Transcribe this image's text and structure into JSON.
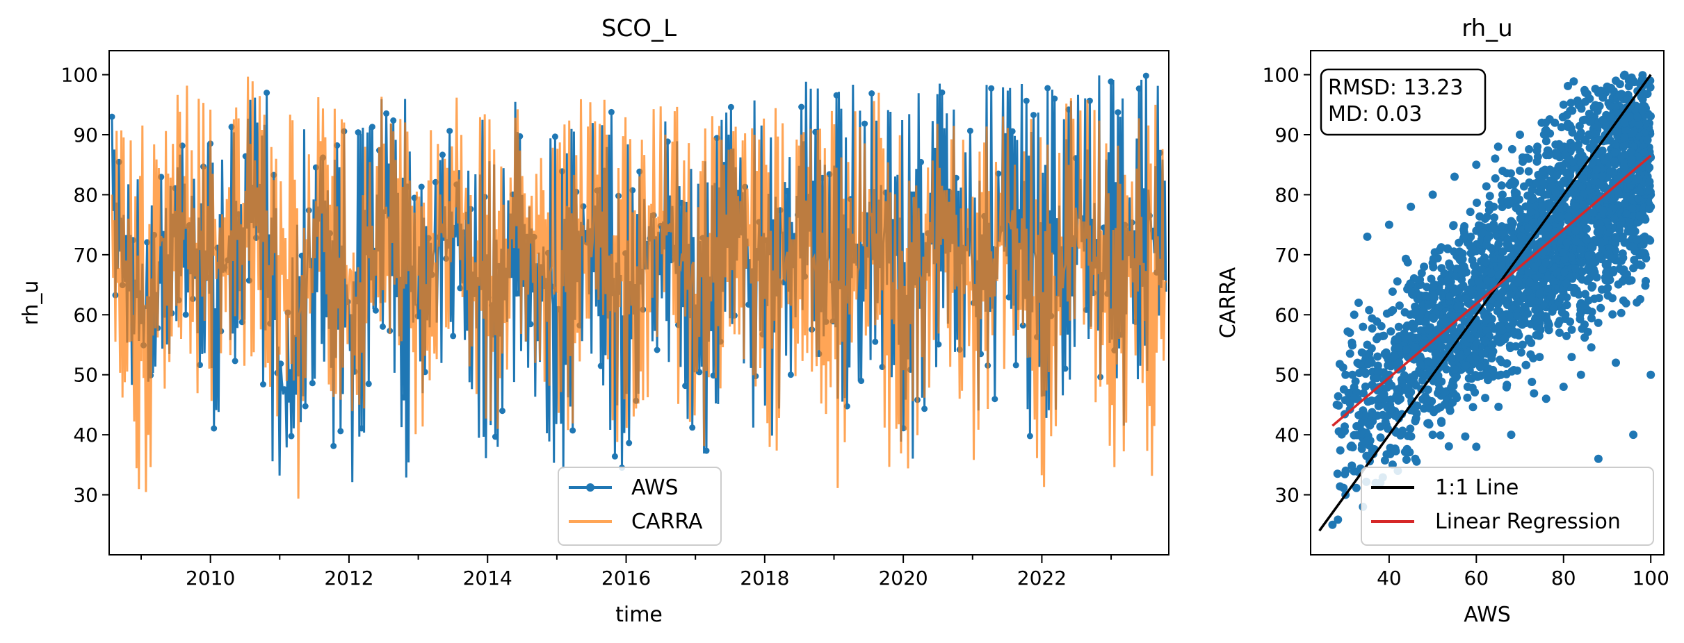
{
  "chart_data": [
    {
      "type": "line",
      "title": "SCO_L",
      "xlabel": "time",
      "ylabel": "rh_u",
      "xlim": [
        "2008-07-15",
        "2023-10-31"
      ],
      "ylim": [
        20,
        104
      ],
      "x_ticks": [
        "2010",
        "2012",
        "2014",
        "2016",
        "2018",
        "2020",
        "2022"
      ],
      "y_ticks": [
        30,
        40,
        50,
        60,
        70,
        80,
        90,
        100
      ],
      "grid": false,
      "legend": "lower center",
      "series": [
        {
          "name": "AWS",
          "color": "#1f77b4",
          "marker": "circle",
          "x": [
            "2008-08",
            "2008-11",
            "2009-02",
            "2009-05",
            "2009-08",
            "2009-11",
            "2010-02",
            "2010-05",
            "2010-08",
            "2010-11",
            "2011-02",
            "2011-05",
            "2011-08",
            "2011-11",
            "2012-02",
            "2012-05",
            "2012-08",
            "2012-11",
            "2013-02",
            "2013-05",
            "2013-08",
            "2013-11",
            "2014-02",
            "2014-05",
            "2014-08",
            "2014-11",
            "2015-02",
            "2015-05",
            "2015-08",
            "2015-11",
            "2016-02",
            "2016-05",
            "2016-08",
            "2016-11",
            "2017-02",
            "2017-05",
            "2017-08",
            "2017-11",
            "2018-02",
            "2018-05",
            "2018-08",
            "2018-11",
            "2019-02",
            "2019-05",
            "2019-08",
            "2019-11",
            "2020-02",
            "2020-05",
            "2020-08",
            "2020-11",
            "2021-02",
            "2021-05",
            "2021-08",
            "2021-11",
            "2022-02",
            "2022-05",
            "2022-08",
            "2022-11",
            "2023-02",
            "2023-05",
            "2023-08"
          ],
          "min": [
            62,
            48,
            41,
            50,
            58,
            45,
            38,
            52,
            55,
            36,
            30.5,
            30.5,
            52,
            33,
            31,
            48,
            55,
            32,
            34,
            50,
            56,
            36,
            35,
            45,
            50,
            34,
            33,
            44,
            52,
            35,
            33,
            47,
            54,
            36,
            29,
            44,
            56,
            40,
            38,
            48,
            56,
            38,
            36,
            46,
            54,
            38,
            33,
            45,
            56,
            40,
            38,
            46,
            54,
            38,
            36,
            46,
            54,
            38,
            36,
            48,
            50
          ],
          "max": [
            93,
            90,
            80,
            85,
            95,
            96,
            88,
            92,
            96,
            99,
            60,
            98,
            99,
            95,
            90,
            98,
            97,
            96,
            92,
            95,
            96,
            94,
            90,
            97,
            96,
            95,
            90,
            95,
            93,
            94,
            88,
            95,
            93,
            96,
            92,
            94,
            99,
            99,
            100,
            98,
            100,
            100,
            98,
            99,
            100,
            99,
            98,
            100,
            100,
            99,
            98,
            99,
            100,
            100,
            98,
            100,
            100,
            100,
            99,
            100,
            100
          ]
        },
        {
          "name": "CARRA",
          "color": "#ff7f0e",
          "alpha": 0.7,
          "x": [
            "2008-08",
            "2008-11",
            "2009-02",
            "2009-05",
            "2009-08",
            "2009-11",
            "2010-02",
            "2010-05",
            "2010-08",
            "2010-11",
            "2011-02",
            "2011-05",
            "2011-08",
            "2011-11",
            "2012-02",
            "2012-05",
            "2012-08",
            "2012-11",
            "2013-02",
            "2013-05",
            "2013-08",
            "2013-11",
            "2014-02",
            "2014-05",
            "2014-08",
            "2014-11",
            "2015-02",
            "2015-05",
            "2015-08",
            "2015-11",
            "2016-02",
            "2016-05",
            "2016-08",
            "2016-11",
            "2017-02",
            "2017-05",
            "2017-08",
            "2017-11",
            "2018-02",
            "2018-05",
            "2018-08",
            "2018-11",
            "2019-02",
            "2019-05",
            "2019-08",
            "2019-11",
            "2020-02",
            "2020-05",
            "2020-08",
            "2020-11",
            "2021-02",
            "2021-05",
            "2021-08",
            "2021-11",
            "2022-02",
            "2022-05",
            "2022-08",
            "2022-11",
            "2023-02",
            "2023-05",
            "2023-08"
          ],
          "min": [
            62,
            25,
            30,
            46,
            55,
            45,
            42,
            50,
            48,
            44,
            40,
            25,
            55,
            40,
            38,
            48,
            54,
            40,
            40,
            50,
            56,
            40,
            38,
            48,
            54,
            40,
            36,
            46,
            54,
            40,
            32,
            44,
            55,
            40,
            36,
            46,
            55,
            44,
            30,
            40,
            52,
            36,
            30,
            42,
            54,
            30,
            28,
            40,
            52,
            38,
            30,
            44,
            54,
            36,
            30,
            44,
            52,
            38,
            30,
            42,
            33
          ],
          "max": [
            92,
            90,
            96,
            98,
            100,
            100,
            95,
            98,
            100,
            95,
            92,
            97,
            99,
            95,
            92,
            96,
            98,
            95,
            92,
            96,
            98,
            96,
            92,
            96,
            98,
            96,
            92,
            96,
            97,
            96,
            92,
            96,
            98,
            96,
            92,
            96,
            92,
            96,
            95,
            97,
            98,
            95,
            94,
            96,
            98,
            94,
            92,
            96,
            97,
            95,
            92,
            96,
            97,
            95,
            92,
            96,
            97,
            95,
            92,
            96,
            95
          ]
        }
      ]
    },
    {
      "type": "scatter",
      "title": "rh_u",
      "xlabel": "AWS",
      "ylabel": "CARRA",
      "xlim": [
        22,
        103
      ],
      "ylim": [
        20,
        104
      ],
      "x_ticks": [
        40,
        60,
        80,
        100
      ],
      "y_ticks": [
        30,
        40,
        50,
        60,
        70,
        80,
        90,
        100
      ],
      "grid": false,
      "legend": "lower right",
      "annotation": [
        "RMSD: 13.23",
        "MD: 0.03"
      ],
      "points": {
        "name": "AWS vs CARRA",
        "color": "#1f77b4",
        "x": [
          27,
          28,
          30,
          31,
          32,
          33,
          34,
          35,
          36,
          38,
          40,
          42,
          44,
          46,
          48,
          50,
          52,
          54,
          56,
          58,
          60,
          62,
          64,
          66,
          68,
          70,
          72,
          74,
          76,
          78,
          80,
          82,
          84,
          86,
          88,
          90,
          92,
          94,
          96,
          98,
          99,
          100,
          100,
          35,
          40,
          45,
          50,
          55,
          60,
          65,
          70,
          75,
          80,
          85,
          90,
          95,
          98,
          30,
          34,
          38,
          42,
          46,
          50,
          54,
          58,
          62,
          66,
          70,
          74,
          78,
          82,
          86,
          90,
          94,
          97,
          100,
          44,
          52,
          60,
          68,
          76,
          84,
          92,
          48,
          56,
          64,
          72,
          80,
          88,
          96
        ],
        "y": [
          25,
          45,
          50,
          57,
          60,
          62,
          58,
          55,
          52,
          48,
          50,
          55,
          58,
          60,
          62,
          64,
          66,
          68,
          70,
          72,
          74,
          76,
          78,
          80,
          82,
          84,
          86,
          88,
          90,
          92,
          93,
          94,
          95,
          96,
          97,
          98,
          99,
          100,
          99,
          98,
          90,
          80,
          50,
          73,
          75,
          78,
          80,
          83,
          85,
          88,
          90,
          92,
          95,
          97,
          98,
          99,
          70,
          30,
          28,
          32,
          34,
          36,
          40,
          44,
          48,
          52,
          56,
          60,
          62,
          64,
          66,
          68,
          70,
          72,
          76,
          78,
          56,
          42,
          38,
          40,
          46,
          50,
          52,
          68,
          72,
          62,
          56,
          48,
          36,
          40
        ]
      },
      "lines": [
        {
          "name": "1:1 Line",
          "color": "#000000",
          "x": [
            24,
            100
          ],
          "y": [
            24,
            100
          ]
        },
        {
          "name": "Linear Regression",
          "color": "#d62728",
          "x": [
            27,
            100
          ],
          "y": [
            41.5,
            86.5
          ]
        }
      ]
    }
  ]
}
